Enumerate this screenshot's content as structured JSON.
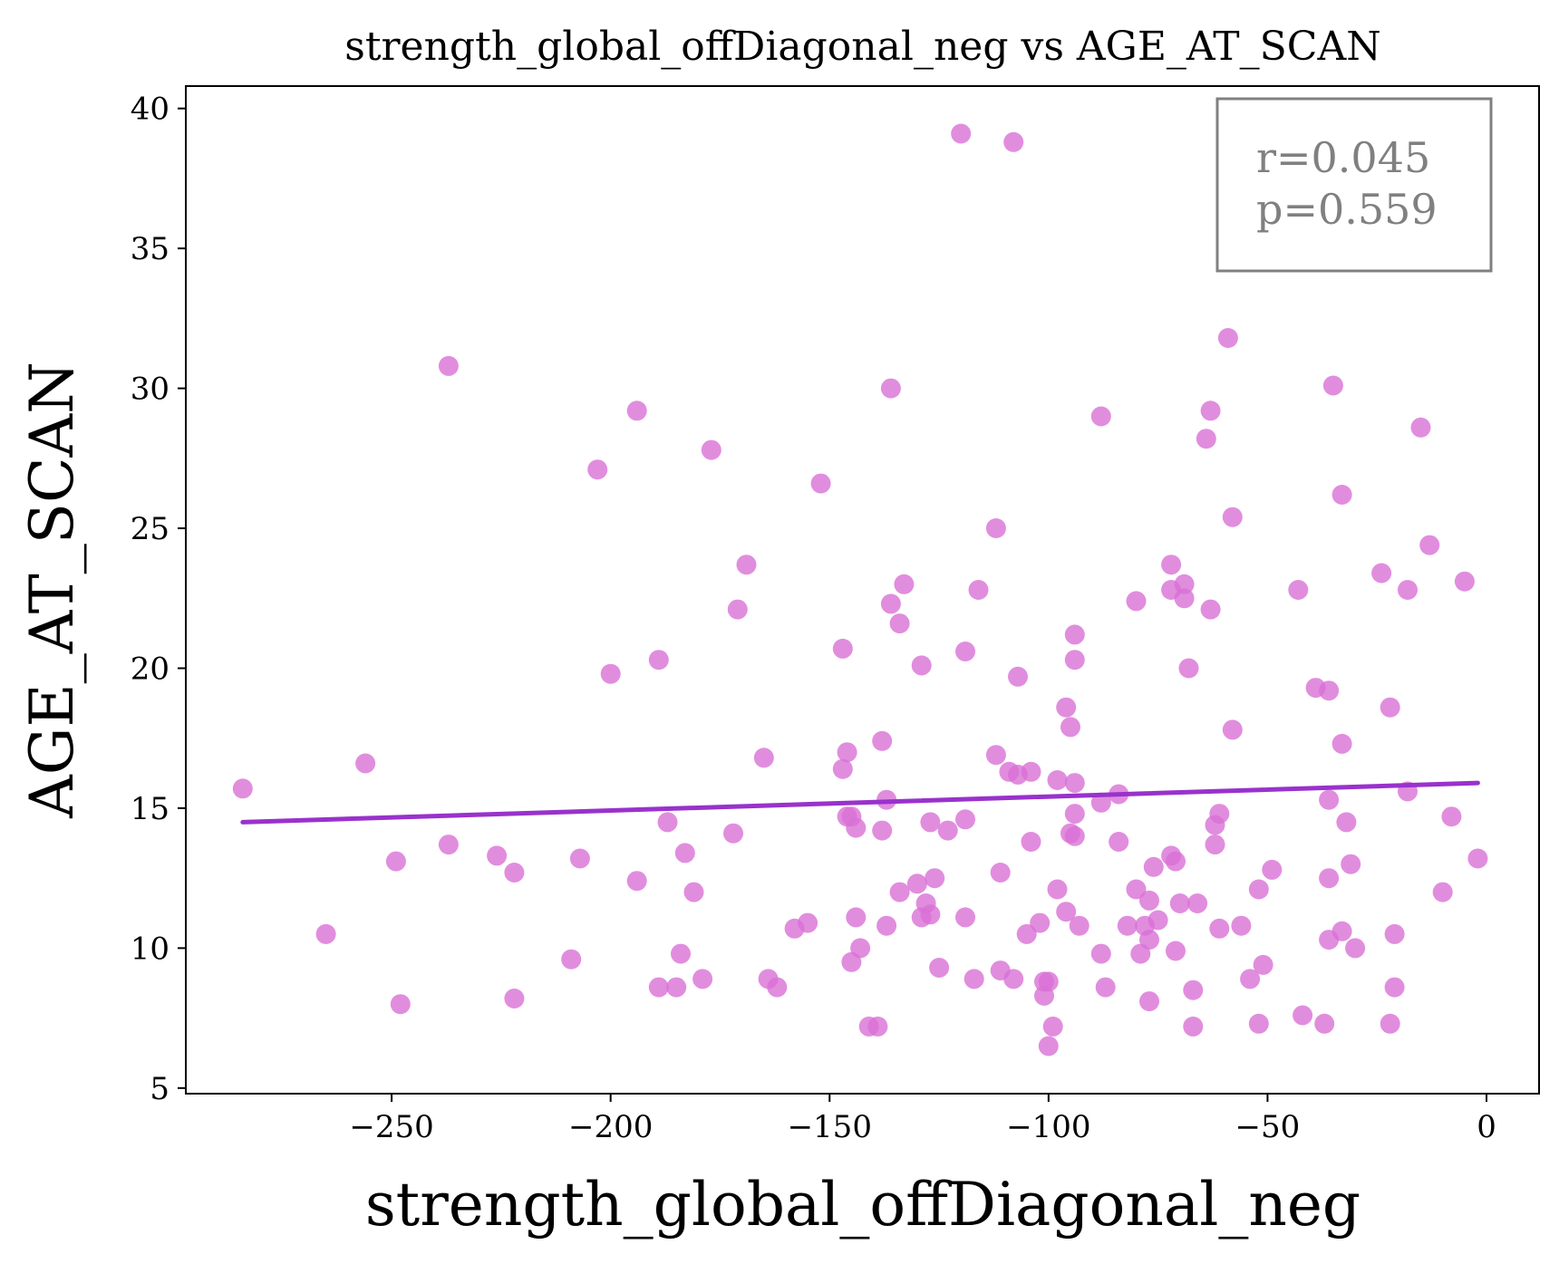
{
  "chart_data": {
    "type": "scatter",
    "title": "strength_global_offDiagonal_neg vs AGE_AT_SCAN",
    "xlabel": "strength_global_offDiagonal_neg",
    "ylabel": "AGE_AT_SCAN",
    "xlim": [
      -297,
      12
    ],
    "ylim": [
      4.8,
      40.8
    ],
    "xticks": [
      -250,
      -200,
      -150,
      -100,
      -50,
      0
    ],
    "xtick_labels": [
      "−250",
      "−200",
      "−150",
      "−100",
      "−50",
      "0"
    ],
    "yticks": [
      5,
      10,
      15,
      20,
      25,
      30,
      35,
      40
    ],
    "ytick_labels": [
      "5",
      "10",
      "15",
      "20",
      "25",
      "30",
      "35",
      "40"
    ],
    "grid": false,
    "annotation": [
      "r=0.045",
      "p=0.559"
    ],
    "colors": {
      "points": "#da70d6",
      "fit_line": "#9932cc",
      "annotation": "#808080"
    },
    "fit_line": {
      "x": [
        -284,
        -2
      ],
      "y": [
        14.5,
        15.9
      ]
    },
    "series": [
      {
        "points": [
          [
            -284,
            15.7
          ],
          [
            -265,
            10.5
          ],
          [
            -256,
            16.6
          ],
          [
            -249,
            13.1
          ],
          [
            -248,
            8.0
          ],
          [
            -237,
            30.8
          ],
          [
            -237,
            13.7
          ],
          [
            -226,
            13.3
          ],
          [
            -222,
            12.7
          ],
          [
            -222,
            8.2
          ],
          [
            -209,
            9.6
          ],
          [
            -207,
            13.2
          ],
          [
            -203,
            27.1
          ],
          [
            -200,
            19.8
          ],
          [
            -194,
            29.2
          ],
          [
            -194,
            12.4
          ],
          [
            -189,
            20.3
          ],
          [
            -189,
            8.6
          ],
          [
            -187,
            14.5
          ],
          [
            -185,
            8.6
          ],
          [
            -184,
            9.8
          ],
          [
            -183,
            13.4
          ],
          [
            -181,
            12.0
          ],
          [
            -179,
            8.9
          ],
          [
            -177,
            27.8
          ],
          [
            -172,
            14.1
          ],
          [
            -171,
            22.1
          ],
          [
            -169,
            23.7
          ],
          [
            -165,
            16.8
          ],
          [
            -164,
            8.9
          ],
          [
            -162,
            8.6
          ],
          [
            -158,
            10.7
          ],
          [
            -155,
            10.9
          ],
          [
            -152,
            26.6
          ],
          [
            -147,
            20.7
          ],
          [
            -147,
            16.4
          ],
          [
            -146,
            17.0
          ],
          [
            -146,
            14.7
          ],
          [
            -145,
            14.7
          ],
          [
            -145,
            9.5
          ],
          [
            -144,
            14.3
          ],
          [
            -144,
            11.1
          ],
          [
            -143,
            10.0
          ],
          [
            -141,
            7.2
          ],
          [
            -139,
            7.2
          ],
          [
            -138,
            17.4
          ],
          [
            -138,
            14.2
          ],
          [
            -137,
            15.3
          ],
          [
            -137,
            10.8
          ],
          [
            -136,
            22.3
          ],
          [
            -136,
            30.0
          ],
          [
            -134,
            21.6
          ],
          [
            -134,
            12.0
          ],
          [
            -133,
            23.0
          ],
          [
            -130,
            12.3
          ],
          [
            -129,
            20.1
          ],
          [
            -129,
            11.1
          ],
          [
            -128,
            11.6
          ],
          [
            -127,
            14.5
          ],
          [
            -127,
            11.2
          ],
          [
            -126,
            12.5
          ],
          [
            -125,
            9.3
          ],
          [
            -123,
            14.2
          ],
          [
            -120,
            39.1
          ],
          [
            -119,
            20.6
          ],
          [
            -119,
            14.6
          ],
          [
            -119,
            11.1
          ],
          [
            -117,
            8.9
          ],
          [
            -116,
            22.8
          ],
          [
            -112,
            25.0
          ],
          [
            -112,
            16.9
          ],
          [
            -111,
            12.7
          ],
          [
            -111,
            9.2
          ],
          [
            -109,
            16.3
          ],
          [
            -108,
            38.8
          ],
          [
            -108,
            8.9
          ],
          [
            -107,
            19.7
          ],
          [
            -107,
            16.2
          ],
          [
            -105,
            10.5
          ],
          [
            -104,
            16.3
          ],
          [
            -104,
            13.8
          ],
          [
            -102,
            10.9
          ],
          [
            -101,
            8.8
          ],
          [
            -101,
            8.3
          ],
          [
            -100,
            8.8
          ],
          [
            -100,
            6.5
          ],
          [
            -99,
            7.2
          ],
          [
            -98,
            16.0
          ],
          [
            -98,
            12.1
          ],
          [
            -96,
            18.6
          ],
          [
            -96,
            11.3
          ],
          [
            -95,
            17.9
          ],
          [
            -95,
            14.1
          ],
          [
            -94,
            21.2
          ],
          [
            -94,
            20.3
          ],
          [
            -94,
            15.9
          ],
          [
            -94,
            14.8
          ],
          [
            -94,
            14.0
          ],
          [
            -93,
            10.8
          ],
          [
            -88,
            29.0
          ],
          [
            -88,
            15.2
          ],
          [
            -88,
            9.8
          ],
          [
            -87,
            8.6
          ],
          [
            -84,
            15.5
          ],
          [
            -84,
            13.8
          ],
          [
            -82,
            10.8
          ],
          [
            -80,
            22.4
          ],
          [
            -80,
            12.1
          ],
          [
            -79,
            9.8
          ],
          [
            -78,
            10.8
          ],
          [
            -77,
            11.7
          ],
          [
            -77,
            10.3
          ],
          [
            -77,
            8.1
          ],
          [
            -76,
            12.9
          ],
          [
            -75,
            11.0
          ],
          [
            -72,
            23.7
          ],
          [
            -72,
            22.8
          ],
          [
            -72,
            13.3
          ],
          [
            -71,
            13.1
          ],
          [
            -71,
            9.9
          ],
          [
            -70,
            11.6
          ],
          [
            -69,
            23.0
          ],
          [
            -69,
            22.5
          ],
          [
            -68,
            20.0
          ],
          [
            -67,
            8.5
          ],
          [
            -67,
            7.2
          ],
          [
            -66,
            11.6
          ],
          [
            -64,
            28.2
          ],
          [
            -63,
            29.2
          ],
          [
            -63,
            22.1
          ],
          [
            -62,
            14.4
          ],
          [
            -62,
            13.7
          ],
          [
            -61,
            14.8
          ],
          [
            -61,
            10.7
          ],
          [
            -59,
            31.8
          ],
          [
            -58,
            17.8
          ],
          [
            -58,
            25.4
          ],
          [
            -56,
            10.8
          ],
          [
            -54,
            8.9
          ],
          [
            -52,
            12.1
          ],
          [
            -52,
            7.3
          ],
          [
            -51,
            9.4
          ],
          [
            -49,
            12.8
          ],
          [
            -43,
            22.8
          ],
          [
            -42,
            7.6
          ],
          [
            -39,
            19.3
          ],
          [
            -37,
            7.3
          ],
          [
            -36,
            19.2
          ],
          [
            -36,
            15.3
          ],
          [
            -36,
            12.5
          ],
          [
            -36,
            10.3
          ],
          [
            -35,
            30.1
          ],
          [
            -33,
            26.2
          ],
          [
            -33,
            10.6
          ],
          [
            -33,
            17.3
          ],
          [
            -32,
            14.5
          ],
          [
            -31,
            13.0
          ],
          [
            -30,
            10.0
          ],
          [
            -24,
            23.4
          ],
          [
            -22,
            18.6
          ],
          [
            -22,
            7.3
          ],
          [
            -21,
            10.5
          ],
          [
            -21,
            8.6
          ],
          [
            -18,
            22.8
          ],
          [
            -18,
            15.6
          ],
          [
            -15,
            28.6
          ],
          [
            -13,
            24.4
          ],
          [
            -10,
            12.0
          ],
          [
            -8,
            14.7
          ],
          [
            -5,
            23.1
          ],
          [
            -2,
            13.2
          ]
        ]
      }
    ]
  }
}
